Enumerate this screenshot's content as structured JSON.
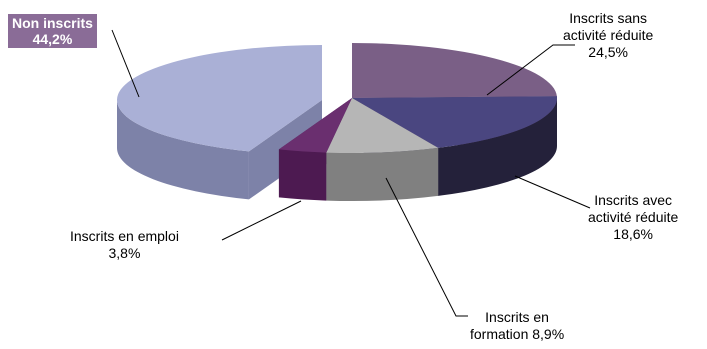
{
  "chart_data": {
    "type": "pie",
    "slices": [
      {
        "label_line1": "Inscrits sans",
        "label_line2": "activité réduite",
        "value_label": "24,5%",
        "value": 24.5,
        "colors": {
          "top": "#7a5f86",
          "side": "#5e4668"
        }
      },
      {
        "label_line1": "Inscrits avec",
        "label_line2": "activité réduite",
        "value_label": "18,6%",
        "value": 18.6,
        "colors": {
          "top": "#4a4680",
          "side": "#24213a"
        }
      },
      {
        "label_line1": "Inscrits en",
        "label_line2": "formation 8,9%",
        "value_label": "",
        "value": 8.9,
        "colors": {
          "top": "#b6b6b6",
          "side": "#808080"
        }
      },
      {
        "label_line1": "Inscrits en emploi",
        "label_line2": "3,8%",
        "value_label": "",
        "value": 3.8,
        "colors": {
          "top": "#6a2f6f",
          "side": "#4d1a51"
        }
      },
      {
        "label_line1": "Non inscrits",
        "label_line2": "44,2%",
        "value_label": "",
        "value": 44.2,
        "colors": {
          "top": "#aab0d6",
          "side": "#7d82a8"
        }
      }
    ]
  }
}
